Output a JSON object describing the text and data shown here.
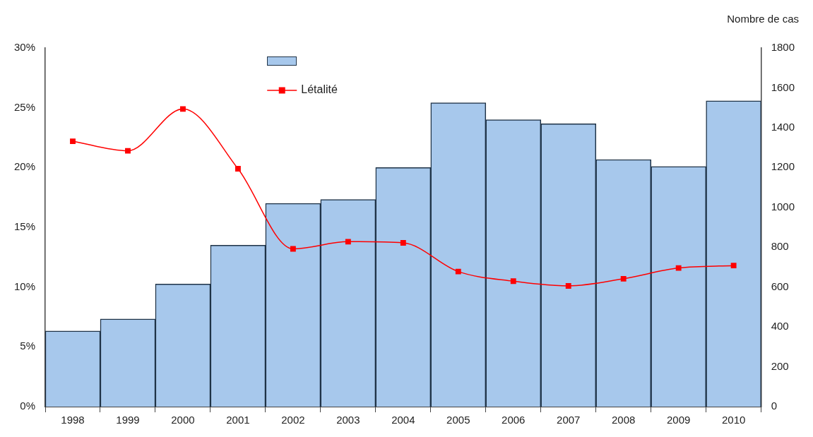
{
  "chart_data": {
    "type": "bar",
    "y2label": "Nombre de cas",
    "categories": [
      "1998",
      "1999",
      "2000",
      "2001",
      "2002",
      "2003",
      "2004",
      "2005",
      "2006",
      "2007",
      "2008",
      "2009",
      "2010"
    ],
    "series": [
      {
        "axis": "y2",
        "color": "#a7c8ec",
        "values": [
          380,
          440,
          615,
          810,
          1020,
          1040,
          1200,
          1525,
          1440,
          1420,
          1240,
          1205,
          1535
        ]
      },
      {
        "type": "line",
        "name": "Létalité",
        "axis": "y",
        "color": "#ff0000",
        "marker": "square",
        "values": [
          22.2,
          21.4,
          24.9,
          19.9,
          13.2,
          13.8,
          13.7,
          11.3,
          10.5,
          10.1,
          10.7,
          11.6,
          11.8
        ]
      }
    ],
    "ylim": [
      0,
      30
    ],
    "yticks": [
      {
        "value": 0,
        "label": "0%"
      },
      {
        "value": 5,
        "label": "5%"
      },
      {
        "value": 10,
        "label": "10%"
      },
      {
        "value": 15,
        "label": "15%"
      },
      {
        "value": 20,
        "label": "20%"
      },
      {
        "value": 25,
        "label": "25%"
      },
      {
        "value": 30,
        "label": "30%"
      }
    ],
    "y2lim": [
      0,
      1800
    ],
    "y2ticks": [
      0,
      200,
      400,
      600,
      800,
      1000,
      1200,
      1400,
      1600,
      1800
    ],
    "grid": false,
    "legend": "top"
  }
}
